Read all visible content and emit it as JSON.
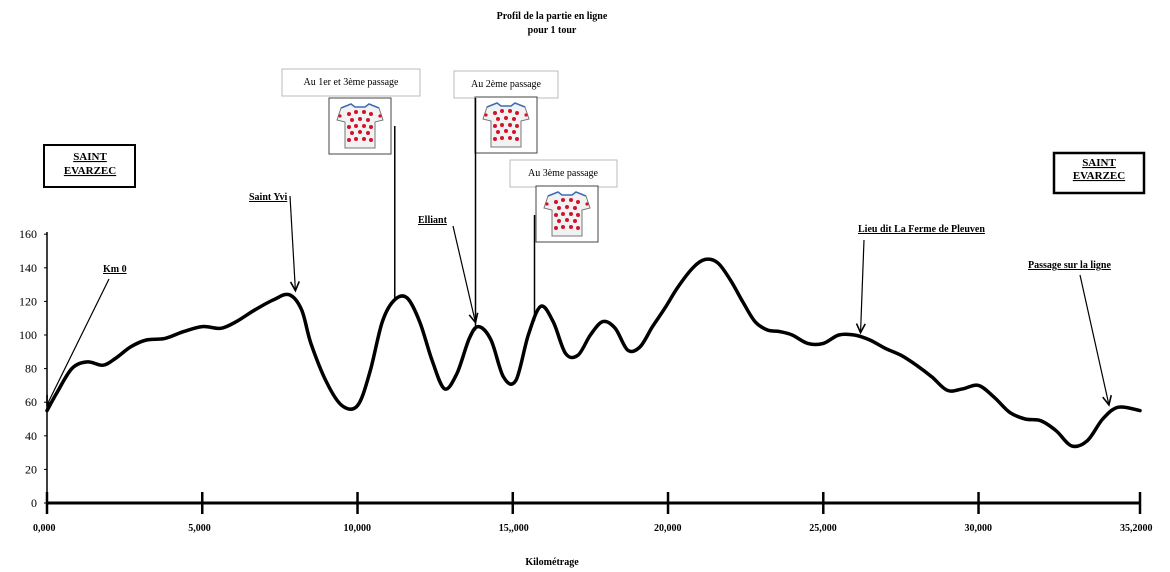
{
  "chart_data": {
    "type": "area",
    "title": "Profil de la partie en ligne",
    "subtitle": "pour 1 tour",
    "xlabel": "Kilométrage",
    "ylabel": "",
    "xlim": [
      0,
      35.2
    ],
    "ylim": [
      0,
      180
    ],
    "x_ticks": [
      {
        "v": 0,
        "label": "0,000"
      },
      {
        "v": 5,
        "label": "5,000"
      },
      {
        "v": 10,
        "label": "10,000"
      },
      {
        "v": 15,
        "label": "15,,000"
      },
      {
        "v": 20,
        "label": "20,000"
      },
      {
        "v": 25,
        "label": "25,000"
      },
      {
        "v": 30,
        "label": "30,000"
      },
      {
        "v": 35.2,
        "label": "35,2000"
      }
    ],
    "y_ticks": [
      {
        "v": 0,
        "label": "0"
      },
      {
        "v": 20,
        "label": "20"
      },
      {
        "v": 40,
        "label": "40"
      },
      {
        "v": 60,
        "label": "60"
      },
      {
        "v": 80,
        "label": "80"
      },
      {
        "v": 100,
        "label": "100"
      },
      {
        "v": 120,
        "label": "120"
      },
      {
        "v": 140,
        "label": "140"
      },
      {
        "v": 160,
        "label": "160"
      }
    ],
    "grid": false,
    "series": [
      {
        "x": [
          0,
          0.3,
          0.8,
          1.3,
          1.8,
          2.2,
          2.7,
          3.2,
          3.8,
          4.4,
          5,
          5.6,
          6.1,
          6.7,
          7.3,
          7.8,
          8.2,
          8.5,
          9,
          9.5,
          10,
          10.4,
          10.8,
          11.2,
          11.6,
          12,
          12.4,
          12.8,
          13.2,
          13.6,
          13.9,
          14.3,
          14.7,
          15.1,
          15.5,
          15.9,
          16.3,
          16.7,
          17.1,
          17.5,
          17.9,
          18.3,
          18.7,
          19.1,
          19.5,
          19.9,
          20.3,
          20.8,
          21.2,
          21.6,
          22,
          22.4,
          22.8,
          23.2,
          23.6,
          24,
          24.5,
          25,
          25.5,
          26,
          26.5,
          27,
          27.5,
          28,
          28.5,
          29,
          29.5,
          30,
          30.5,
          31,
          31.5,
          32,
          32.5,
          33,
          33.5,
          34,
          34.5,
          35.2
        ],
        "y": [
          55,
          65,
          80,
          84,
          82,
          86,
          93,
          97,
          98,
          102,
          105,
          104,
          108,
          115,
          121,
          124,
          115,
          95,
          72,
          58,
          58,
          78,
          108,
          121,
          122,
          108,
          85,
          68,
          77,
          98,
          105,
          97,
          75,
          73,
          100,
          117,
          108,
          89,
          88,
          100,
          108,
          104,
          91,
          93,
          105,
          116,
          128,
          140,
          145,
          143,
          133,
          120,
          108,
          103,
          102,
          100,
          95,
          95,
          100,
          100,
          97,
          92,
          88,
          82,
          75,
          67,
          68,
          70,
          63,
          54,
          50,
          49,
          43,
          34,
          37,
          50,
          57,
          55
        ]
      }
    ],
    "annotations": [
      {
        "text": "Km 0",
        "x": 0,
        "y": 56
      },
      {
        "text": "Saint Yvi",
        "x": 8.0,
        "y": 124
      },
      {
        "text": "Elliant",
        "x": 13.8,
        "y": 105
      },
      {
        "text": "Lieu dit La Ferme de Pleuven",
        "x": 26.2,
        "y": 99
      },
      {
        "text": "Passage sur la ligne",
        "x": 34.2,
        "y": 56
      }
    ],
    "passage_labels": [
      {
        "text": "Au 1er et 3ème passage",
        "x": 11.2
      },
      {
        "text": "Au 2ème passage",
        "x": 13.8
      },
      {
        "text": "Au 3ème passage",
        "x": 15.7
      }
    ],
    "towns": [
      {
        "line1": "SAINT",
        "line2": "EVARZEC",
        "side": "left"
      },
      {
        "line1": "SAINT",
        "line2": "EVARZEC",
        "side": "right"
      }
    ],
    "icons": [
      "polka-dot-jersey-icon"
    ]
  }
}
